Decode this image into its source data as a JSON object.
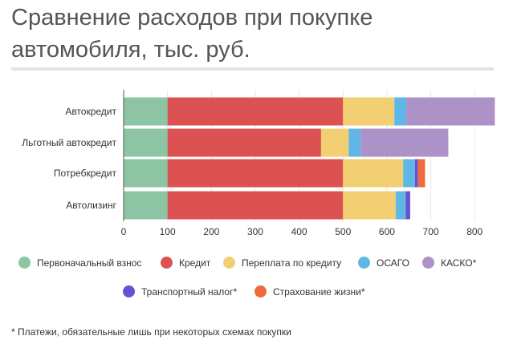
{
  "title": "Сравнение расходов при покупке автомобиля, тыс. руб.",
  "footnote": "* Платежи, обязательные лишь при некоторых схемах покупки",
  "chart_data": {
    "type": "bar",
    "orientation": "horizontal",
    "stacked": true,
    "categories": [
      "Автокредит",
      "Льготный автокредит",
      "Потребкредит",
      "Автолизинг"
    ],
    "x_ticks": [
      0,
      100,
      200,
      300,
      400,
      500,
      600,
      700,
      800
    ],
    "xlim": [
      0,
      860
    ],
    "grid": true,
    "legend_position": "bottom",
    "series": [
      {
        "name": "Первоначальный взнос",
        "color": "#8dc5a4",
        "values": [
          100,
          100,
          100,
          100
        ]
      },
      {
        "name": "Кредит",
        "color": "#dc5252",
        "values": [
          400,
          350,
          400,
          400
        ]
      },
      {
        "name": "Переплата по кредиту",
        "color": "#f2cf72",
        "values": [
          117,
          63,
          137,
          120
        ]
      },
      {
        "name": "ОСАГО",
        "color": "#5fb7e6",
        "values": [
          27,
          27,
          27,
          23
        ]
      },
      {
        "name": "КАСКО*",
        "color": "#ad92c8",
        "values": [
          202,
          200,
          0,
          0
        ]
      },
      {
        "name": "Транспортный налог*",
        "color": "#6a50d0",
        "values": [
          0,
          0,
          7,
          10
        ]
      },
      {
        "name": "Страхование жизни*",
        "color": "#f26a3c",
        "values": [
          0,
          0,
          16,
          0
        ]
      }
    ]
  }
}
